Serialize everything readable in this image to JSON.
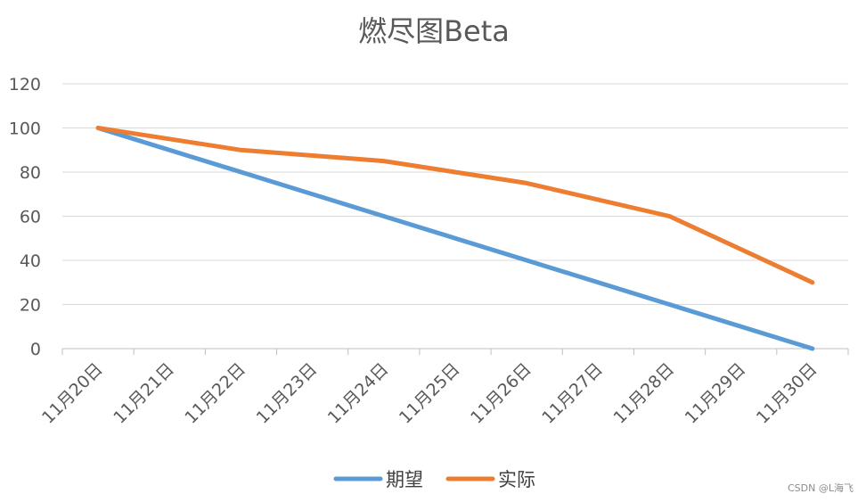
{
  "chart_data": {
    "type": "line",
    "title": "燃尽图Beta",
    "categories": [
      "11月20日",
      "11月21日",
      "11月22日",
      "11月23日",
      "11月24日",
      "11月25日",
      "11月26日",
      "11月27日",
      "11月28日",
      "11月29日",
      "11月30日"
    ],
    "series": [
      {
        "name": "期望",
        "color": "#5B9BD5",
        "values": [
          100,
          null,
          null,
          null,
          60,
          null,
          40,
          null,
          20,
          null,
          0
        ]
      },
      {
        "name": "实际",
        "color": "#ED7D31",
        "values": [
          100,
          null,
          90,
          null,
          85,
          null,
          75,
          null,
          60,
          null,
          30
        ]
      }
    ],
    "ylim": [
      0,
      120
    ],
    "yticks": [
      0,
      20,
      40,
      60,
      80,
      100,
      120
    ],
    "grid": true,
    "legend_position": "bottom"
  },
  "watermark": "CSDN @L海飞"
}
